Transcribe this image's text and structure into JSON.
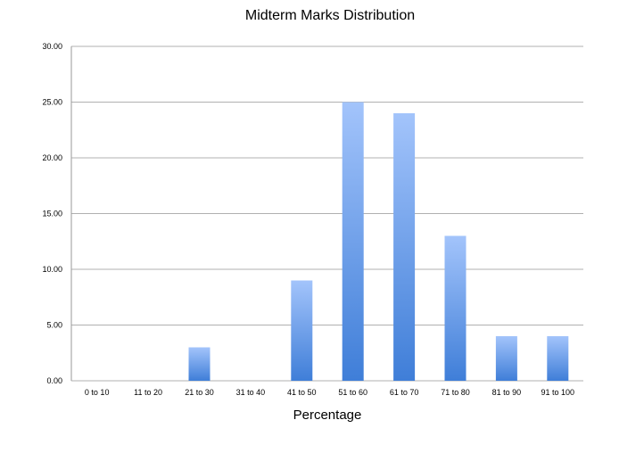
{
  "chart_data": {
    "type": "bar",
    "title": "Midterm Marks Distribution",
    "xlabel": "Percentage",
    "ylabel": "",
    "categories": [
      "0 to 10",
      "11 to 20",
      "21 to 30",
      "31 to 40",
      "41 to 50",
      "51 to 60",
      "61 to 70",
      "71 to 80",
      "81 to 90",
      "91 to 100"
    ],
    "values": [
      0,
      0,
      3,
      0,
      9,
      25,
      24,
      13,
      4,
      4
    ],
    "ylim": [
      0,
      30
    ],
    "yticks": [
      "0.00",
      "5.00",
      "10.00",
      "15.00",
      "20.00",
      "25.00",
      "30.00"
    ],
    "grid": true,
    "legend": "none",
    "colors": {
      "bar_top": "#a3c4fb",
      "bar_bottom": "#3f7ed8",
      "grid": "#b0b0b0"
    }
  }
}
